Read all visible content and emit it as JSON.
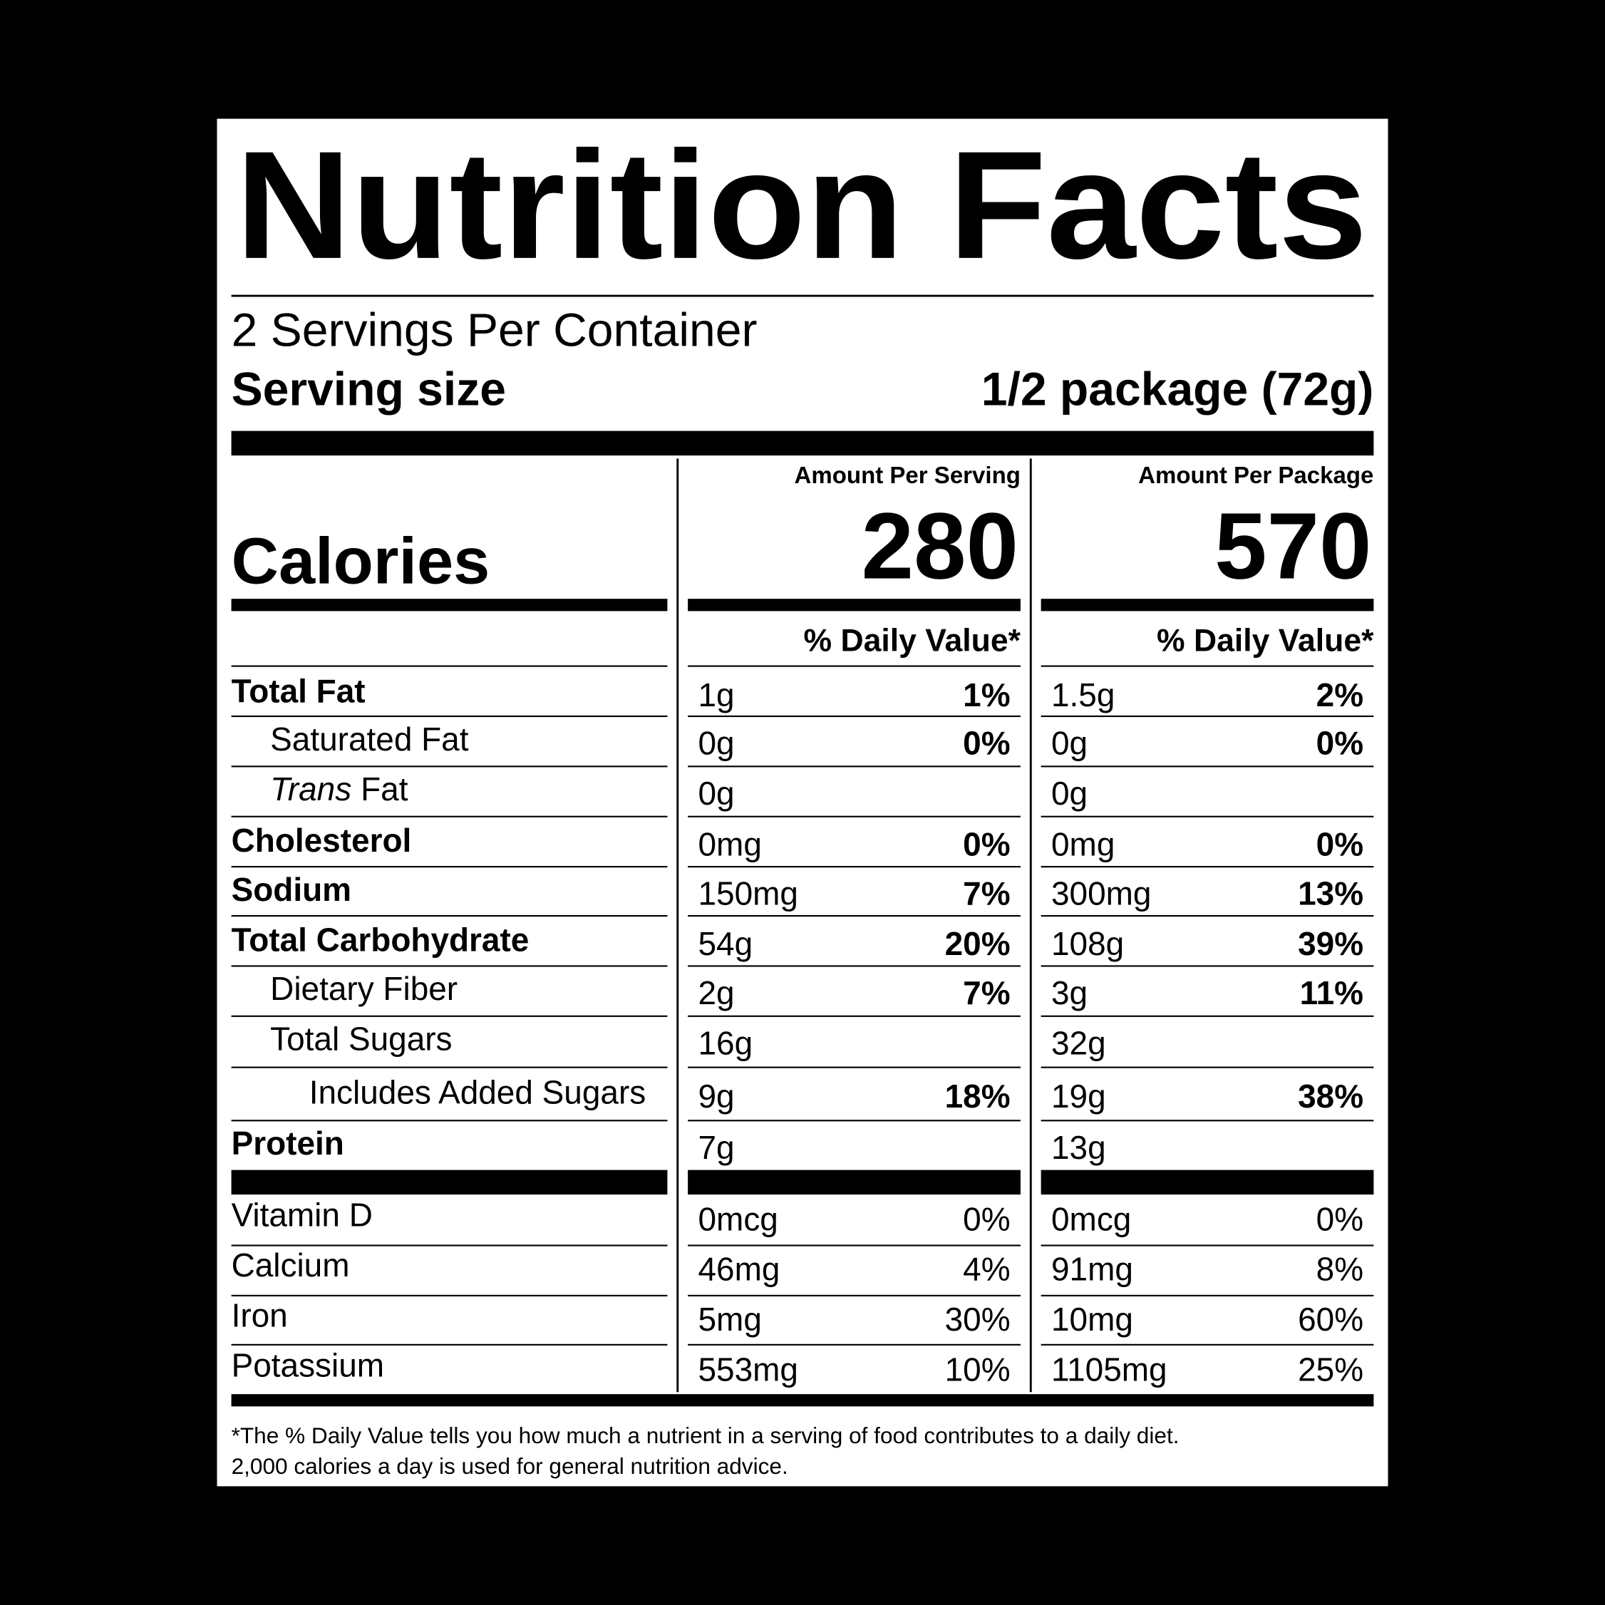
{
  "header": {
    "title": "Nutrition Facts",
    "servings": "2 Servings Per Container",
    "serving_size_label": "Serving size",
    "serving_size": "1/2 package (72g)"
  },
  "calories_label": "Calories",
  "columns": [
    {
      "heading": "Amount Per Serving",
      "calories": "280",
      "dv_heading": "% Daily Value*"
    },
    {
      "heading": "Amount Per Package",
      "calories": "570",
      "dv_heading": "% Daily Value*"
    }
  ],
  "nutrients": [
    {
      "label": "Total Fat",
      "bold": true,
      "indent": 0,
      "amounts": [
        "1g",
        "1.5g"
      ],
      "dv": [
        "1%",
        "2%"
      ]
    },
    {
      "label": "Saturated Fat",
      "bold": false,
      "indent": 1,
      "amounts": [
        "0g",
        "0g"
      ],
      "dv": [
        "0%",
        "0%"
      ]
    },
    {
      "label_italic": "Trans",
      "label": "Fat",
      "bold": false,
      "indent": 1,
      "amounts": [
        "0g",
        "0g"
      ]
    },
    {
      "label": "Cholesterol",
      "bold": true,
      "indent": 0,
      "amounts": [
        "0mg",
        "0mg"
      ],
      "dv": [
        "0%",
        "0%"
      ]
    },
    {
      "label": "Sodium",
      "bold": true,
      "indent": 0,
      "amounts": [
        "150mg",
        "300mg"
      ],
      "dv": [
        "7%",
        "13%"
      ]
    },
    {
      "label": "Total Carbohydrate",
      "bold": true,
      "indent": 0,
      "amounts": [
        "54g",
        "108g"
      ],
      "dv": [
        "20%",
        "39%"
      ]
    },
    {
      "label": "Dietary Fiber",
      "bold": false,
      "indent": 1,
      "amounts": [
        "2g",
        "3g"
      ],
      "dv": [
        "7%",
        "11%"
      ]
    },
    {
      "label": "Total Sugars",
      "bold": false,
      "indent": 1,
      "amounts": [
        "16g",
        "32g"
      ]
    },
    {
      "label": "Includes Added Sugars",
      "bold": false,
      "indent": 2,
      "amounts": [
        "9g",
        "19g"
      ],
      "dv": [
        "18%",
        "38%"
      ]
    },
    {
      "label": "Protein",
      "bold": true,
      "indent": 0,
      "amounts": [
        "7g",
        "13g"
      ]
    }
  ],
  "vitamins": [
    {
      "label": "Vitamin D",
      "amounts": [
        "0mcg",
        "0mcg"
      ],
      "dv": [
        "0%",
        "0%"
      ]
    },
    {
      "label": "Calcium",
      "amounts": [
        "46mg",
        "91mg"
      ],
      "dv": [
        "4%",
        "8%"
      ]
    },
    {
      "label": "Iron",
      "amounts": [
        "5mg",
        "10mg"
      ],
      "dv": [
        "30%",
        "60%"
      ]
    },
    {
      "label": "Potassium",
      "amounts": [
        "553mg",
        "1105mg"
      ],
      "dv": [
        "10%",
        "25%"
      ]
    }
  ],
  "footnote": [
    "*The % Daily Value tells you how much a nutrient in a serving of food contributes to a daily diet.",
    "2,000 calories a day is used for general nutrition advice."
  ]
}
